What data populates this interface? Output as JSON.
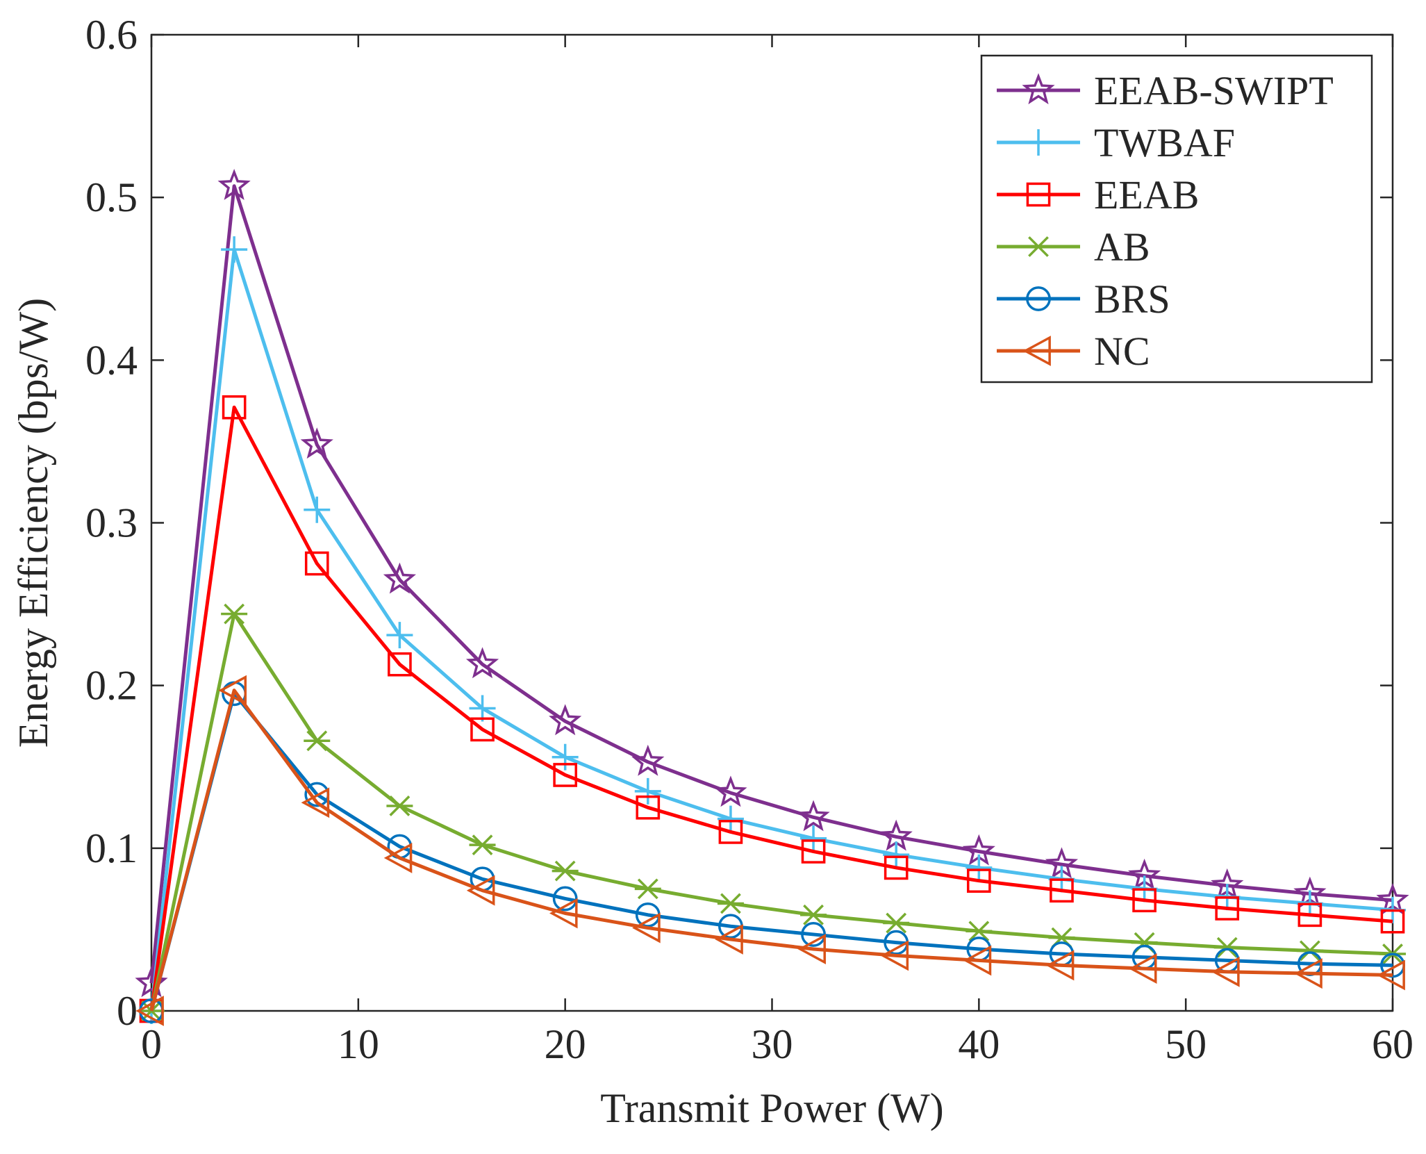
{
  "chart_data": {
    "type": "line",
    "title": "",
    "xlabel": "Transmit Power (W)",
    "ylabel": "Energy Efficiency (bps/W)",
    "xlim": [
      0,
      60
    ],
    "ylim": [
      0,
      0.6
    ],
    "xticks": [
      0,
      10,
      20,
      30,
      40,
      50,
      60
    ],
    "yticks": [
      0,
      0.1,
      0.2,
      0.3,
      0.4,
      0.5,
      0.6
    ],
    "xtick_labels": [
      "0",
      "10",
      "20",
      "30",
      "40",
      "50",
      "60"
    ],
    "ytick_labels": [
      "0",
      "0.1",
      "0.2",
      "0.3",
      "0.4",
      "0.5",
      "0.6"
    ],
    "grid": false,
    "legend_position": "top-right",
    "x": [
      0,
      4,
      8,
      12,
      16,
      20,
      24,
      28,
      32,
      36,
      40,
      44,
      48,
      52,
      56,
      60
    ],
    "series": [
      {
        "name": "EEAB-SWIPT",
        "color": "#7E2F8E",
        "marker": "star",
        "values": [
          0.017,
          0.507,
          0.348,
          0.265,
          0.213,
          0.178,
          0.153,
          0.134,
          0.119,
          0.107,
          0.098,
          0.09,
          0.083,
          0.077,
          0.072,
          0.068
        ]
      },
      {
        "name": "TWBAF",
        "color": "#4DBEEE",
        "marker": "plus",
        "values": [
          0.0,
          0.468,
          0.308,
          0.231,
          0.186,
          0.156,
          0.135,
          0.118,
          0.106,
          0.096,
          0.088,
          0.081,
          0.075,
          0.07,
          0.066,
          0.062
        ]
      },
      {
        "name": "EEAB",
        "color": "#FF0000",
        "marker": "square",
        "values": [
          0.0,
          0.371,
          0.275,
          0.213,
          0.173,
          0.145,
          0.125,
          0.11,
          0.098,
          0.088,
          0.08,
          0.074,
          0.068,
          0.063,
          0.059,
          0.055
        ]
      },
      {
        "name": "AB",
        "color": "#77AC30",
        "marker": "asterisk",
        "values": [
          0.0,
          0.244,
          0.166,
          0.126,
          0.102,
          0.086,
          0.075,
          0.066,
          0.059,
          0.054,
          0.049,
          0.045,
          0.042,
          0.039,
          0.037,
          0.035
        ]
      },
      {
        "name": "BRS",
        "color": "#0072BD",
        "marker": "circle",
        "values": [
          0.0,
          0.195,
          0.133,
          0.101,
          0.081,
          0.069,
          0.059,
          0.052,
          0.047,
          0.042,
          0.038,
          0.035,
          0.033,
          0.031,
          0.029,
          0.028
        ]
      },
      {
        "name": "NC",
        "color": "#D95319",
        "marker": "triangle-left",
        "values": [
          0.0,
          0.197,
          0.128,
          0.094,
          0.074,
          0.06,
          0.051,
          0.044,
          0.038,
          0.034,
          0.031,
          0.028,
          0.026,
          0.024,
          0.023,
          0.022
        ]
      }
    ]
  }
}
